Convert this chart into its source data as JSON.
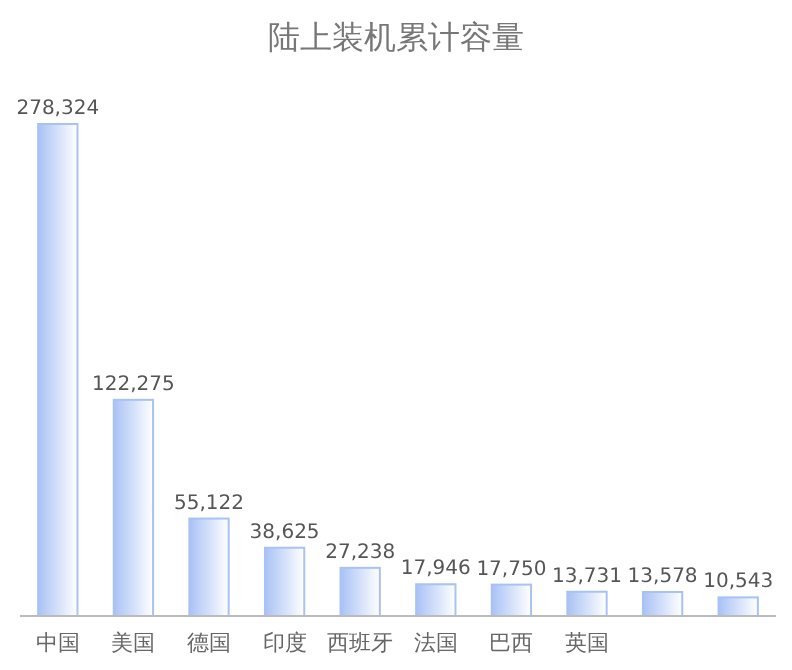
{
  "chart_data": {
    "type": "bar",
    "title": "陆上装机累计容量",
    "categories": [
      "中国",
      "美国",
      "德国",
      "印度",
      "西班牙",
      "法国",
      "巴西",
      "英国",
      null,
      null
    ],
    "values": [
      278324,
      122275,
      55122,
      38625,
      27238,
      17946,
      17750,
      13731,
      13578,
      10543
    ],
    "value_labels": [
      "278,324",
      "122,275",
      "55,122",
      "38,625",
      "27,238",
      "17,946",
      "17,750",
      "13,731",
      "13,578",
      "10,543"
    ],
    "color": "#a9c2f5",
    "grid": false
  }
}
